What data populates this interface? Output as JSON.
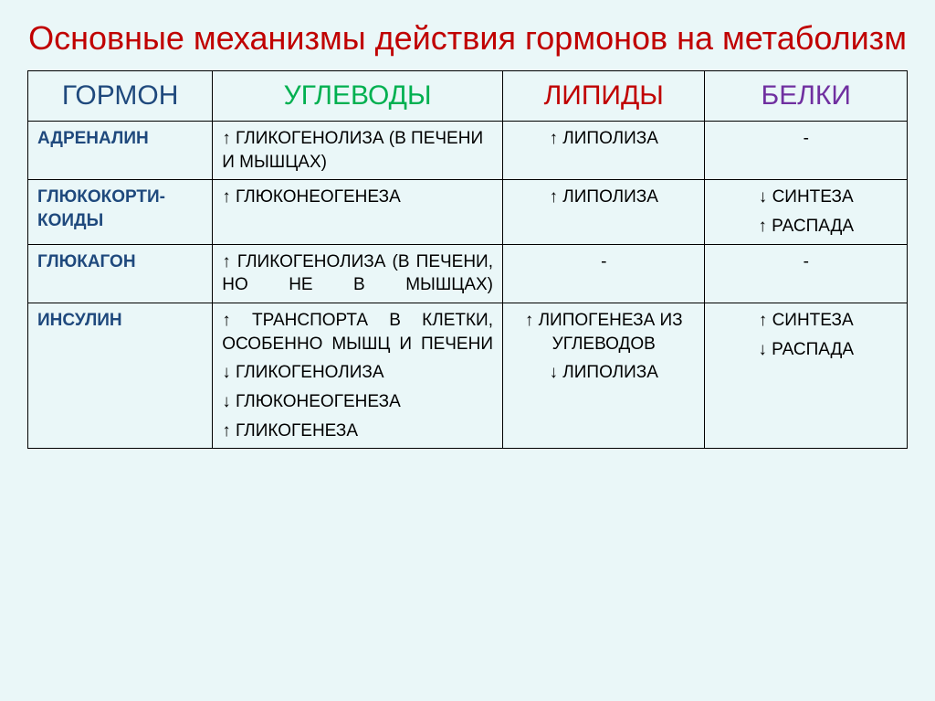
{
  "title_color": "#c00000",
  "title": "Основные механизмы действия гормонов на метаболизм",
  "background_color": "#eaf7f8",
  "border_color": "#000000",
  "columns": [
    {
      "label": "ГОРМОН",
      "color": "#1f497d",
      "width": "21%"
    },
    {
      "label": "УГЛЕВОДЫ",
      "color": "#00b050",
      "width": "33%"
    },
    {
      "label": "ЛИПИДЫ",
      "color": "#c00000",
      "width": "23%"
    },
    {
      "label": "БЕЛКИ",
      "color": "#7030a0",
      "width": "23%"
    }
  ],
  "header_fontsize": 30,
  "cell_fontsize": 19,
  "hormone_fontsize": 19,
  "hormone_color": "#1f497d",
  "cell_text_color": "#000000",
  "rows": [
    {
      "hormone": "АДРЕНАЛИН",
      "carbs": [
        {
          "text": "↑ ГЛИКОГЕНОЛИЗА (В ПЕЧЕНИ И МЫШЦАХ)",
          "align": "left"
        }
      ],
      "lipids": [
        {
          "text": "↑ ЛИПОЛИЗА",
          "align": "center"
        }
      ],
      "proteins": [
        {
          "text": "-",
          "align": "center"
        }
      ]
    },
    {
      "hormone": "ГЛЮКОКОРТИ-КОИДЫ",
      "carbs": [
        {
          "text": "↑ ГЛЮКОНЕОГЕНЕЗА",
          "align": "left"
        }
      ],
      "lipids": [
        {
          "text": "↑ ЛИПОЛИЗА",
          "align": "center"
        }
      ],
      "proteins": [
        {
          "text": "↓ СИНТЕЗА",
          "align": "center"
        },
        {
          "text": "↑ РАСПАДА",
          "align": "center"
        }
      ]
    },
    {
      "hormone": "ГЛЮКАГОН",
      "carbs": [
        {
          "text": "↑ ГЛИКОГЕНОЛИЗА (В ПЕЧЕНИ, НО НЕ В МЫШЦАХ)",
          "align": "justify"
        }
      ],
      "lipids": [
        {
          "text": "-",
          "align": "center"
        }
      ],
      "proteins": [
        {
          "text": "-",
          "align": "center"
        }
      ]
    },
    {
      "hormone": "ИНСУЛИН",
      "carbs": [
        {
          "text": "↑ ТРАНСПОРТА В КЛЕТКИ, ОСОБЕННО МЫШЦ И ПЕЧЕНИ",
          "align": "justify"
        },
        {
          "text": "↓ ГЛИКОГЕНОЛИЗА",
          "align": "left"
        },
        {
          "text": "↓ ГЛЮКОНЕОГЕНЕЗА",
          "align": "left"
        },
        {
          "text": "↑ ГЛИКОГЕНЕЗА",
          "align": "left"
        }
      ],
      "lipids": [
        {
          "text": "↑ ЛИПОГЕНЕЗА ИЗ УГЛЕВОДОВ",
          "align": "center"
        },
        {
          "text": " ",
          "align": "center"
        },
        {
          "text": "↓ ЛИПОЛИЗА",
          "align": "center"
        }
      ],
      "proteins": [
        {
          "text": "↑ СИНТЕЗА",
          "align": "center"
        },
        {
          "text": " ",
          "align": "center"
        },
        {
          "text": "↓ РАСПАДА",
          "align": "center"
        }
      ]
    }
  ]
}
